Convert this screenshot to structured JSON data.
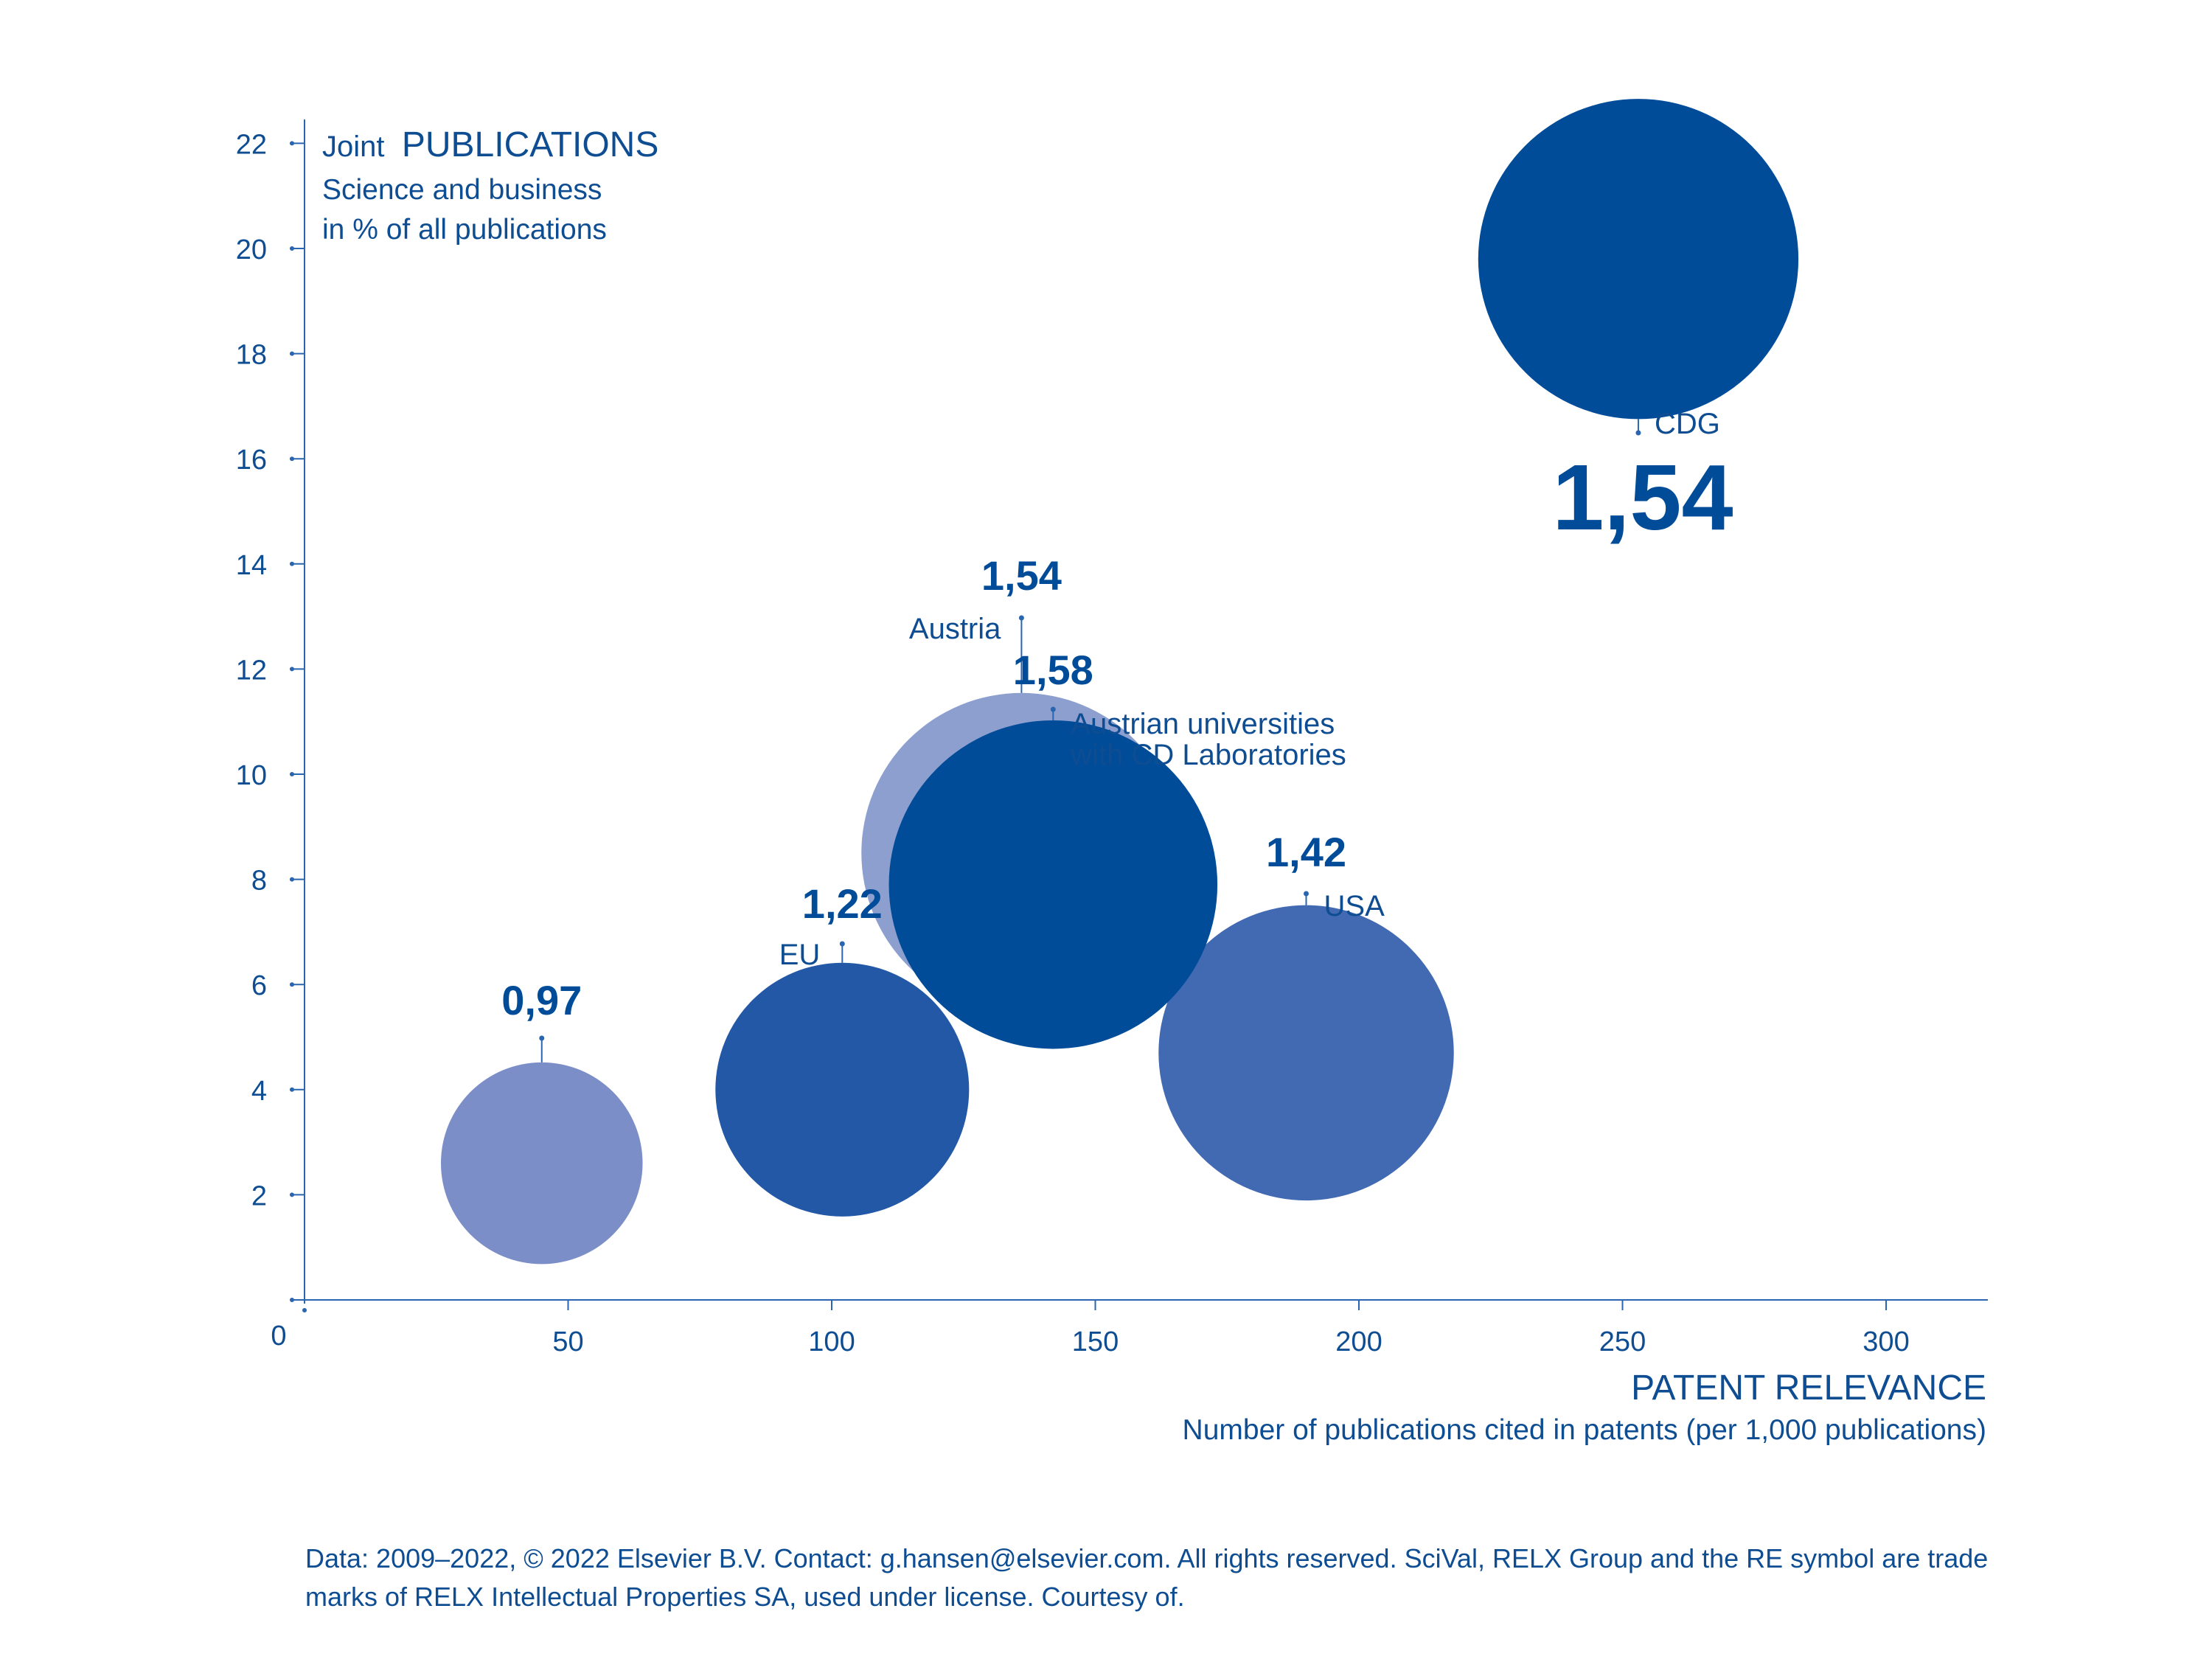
{
  "colors": {
    "axis": "#2a66b0",
    "text": "#0e4d92",
    "dark": "#004c99",
    "medium": "#2358a6",
    "medium_light": "#426ab2",
    "light": "#7b8ec8",
    "lighter": "#8d9fcf"
  },
  "chart_data": {
    "type": "scatter",
    "y_title_prefix": "Joint",
    "y_title_main": "PUBLICATIONS",
    "y_subtitle_lines": [
      "Science and business",
      "in % of all publications"
    ],
    "x_title": "PATENT RELEVANCE",
    "x_subtitle": "Number of publications cited in patents (per 1,000 publications)",
    "origin_label": "0",
    "xlim": [
      0,
      320
    ],
    "ylim": [
      0,
      22
    ],
    "x_ticks": [
      50,
      100,
      150,
      200,
      250,
      300
    ],
    "y_ticks": [
      2,
      4,
      6,
      8,
      10,
      12,
      14,
      16,
      18,
      20,
      22
    ],
    "grid": false,
    "points": [
      {
        "id": "unlabeled",
        "label": "",
        "value_label": "0,97",
        "x": 45,
        "y": 2.6,
        "size": 0.97,
        "color": "#7b8ec8"
      },
      {
        "id": "eu",
        "label": "EU",
        "value_label": "1,22",
        "x": 102,
        "y": 4.0,
        "size": 1.22,
        "color": "#2358a6"
      },
      {
        "id": "austria",
        "label": "Austria",
        "value_label": "1,54",
        "x": 136,
        "y": 8.5,
        "size": 1.54,
        "color": "#8d9fcf"
      },
      {
        "id": "austrian-universities",
        "label": "Austrian universities\nwith CD Laboratories",
        "value_label": "1,58",
        "x": 142,
        "y": 7.9,
        "size": 1.58,
        "color": "#004c99"
      },
      {
        "id": "usa",
        "label": "USA",
        "value_label": "1,42",
        "x": 190,
        "y": 4.7,
        "size": 1.42,
        "color": "#426ab2"
      },
      {
        "id": "cdg",
        "label": "CDG",
        "value_label": "1,54",
        "x": 253,
        "y": 19.8,
        "size": 1.54,
        "color": "#004c99"
      }
    ]
  },
  "footer": {
    "line1": "Data: 2009–2022, © 2022 Elsevier B.V. Contact: g.hansen@elsevier.com. All rights reserved. SciVal, RELX Group and the RE symbol are trade",
    "line2": "marks of RELX Intellectual Properties SA, used under license. Courtesy of."
  }
}
